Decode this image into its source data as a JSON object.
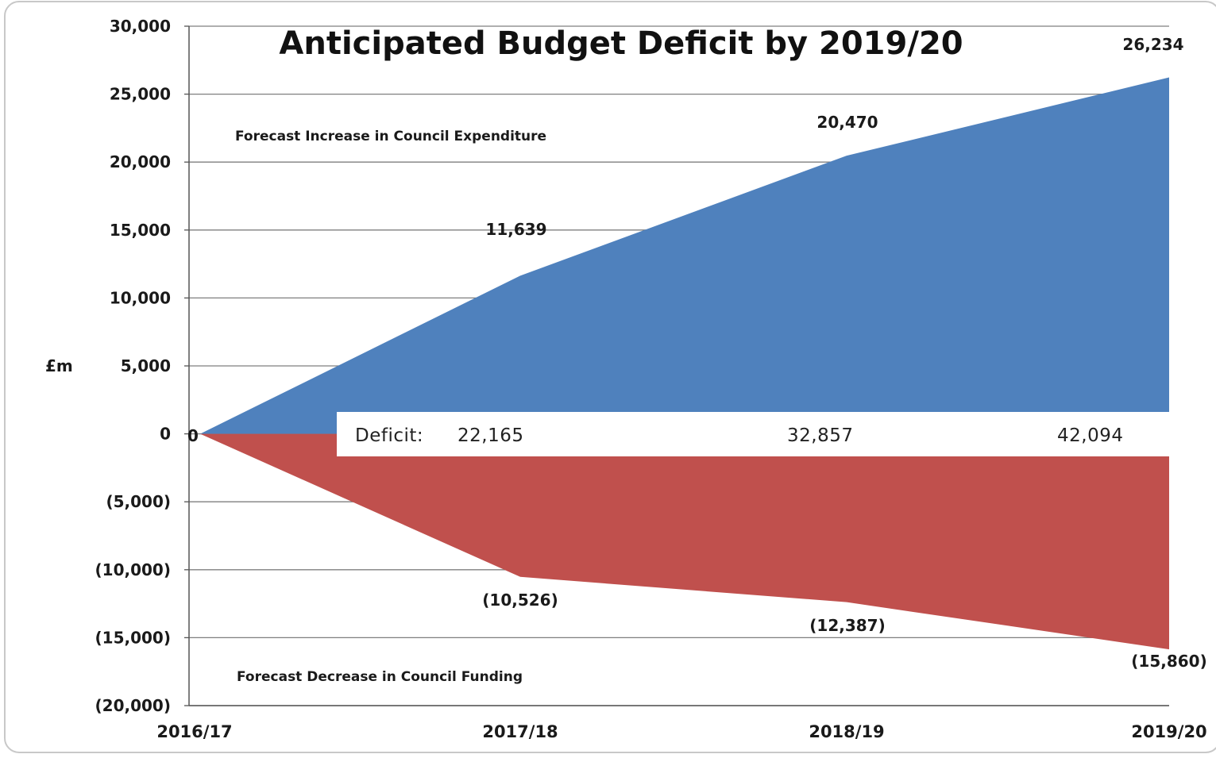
{
  "chart_data": {
    "type": "area",
    "title": "Anticipated Budget Deficit by 2019/20",
    "ylabel": "£m",
    "xlabel": "",
    "categories": [
      "2016/17",
      "2017/18",
      "2018/19",
      "2019/20"
    ],
    "ylim": [
      -20000,
      30000
    ],
    "y_ticks": [
      30000,
      25000,
      20000,
      15000,
      10000,
      5000,
      0,
      -5000,
      -10000,
      -15000,
      -20000
    ],
    "y_tick_labels": [
      "30,000",
      "25,000",
      "20,000",
      "15,000",
      "10,000",
      "5,000",
      "0",
      "(5,000)",
      "(10,000)",
      "(15,000)",
      "(20,000)"
    ],
    "grid": true,
    "series": [
      {
        "values": [
          0,
          11639,
          20470,
          26234
        ],
        "labels": [
          "0",
          "11,639",
          "20,470",
          "26,234"
        ],
        "color": "#4f81bd"
      },
      {
        "values": [
          0,
          -10526,
          -12387,
          -15860
        ],
        "labels": [
          "0",
          "(10,526)",
          "(12,387)",
          "(15,860)"
        ],
        "color": "#c0504d"
      }
    ],
    "annotations": {
      "top": "Forecast Increase in Council Expenditure",
      "bottom": "Forecast Decrease in Council Funding"
    },
    "deficit": {
      "label": "Deficit:",
      "values": [
        "22,165",
        "32,857",
        "42,094"
      ]
    }
  }
}
